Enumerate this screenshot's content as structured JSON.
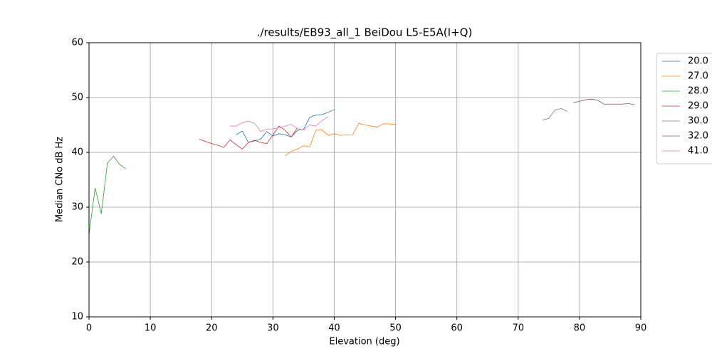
{
  "chart_data": {
    "type": "line",
    "title": "./results/EB93_all_1 BeiDou L5-E5A(I+Q)",
    "xlabel": "Elevation (deg)",
    "ylabel": "Median CNo dB Hz",
    "xlim": [
      0,
      90
    ],
    "ylim": [
      10,
      60
    ],
    "xticks": [
      0,
      10,
      20,
      30,
      40,
      50,
      60,
      70,
      80,
      90
    ],
    "yticks": [
      10,
      20,
      30,
      40,
      50,
      60
    ],
    "grid": true,
    "legend": "upper right",
    "series": [
      {
        "name": "20.0",
        "color": "#1f77b4",
        "x": [
          24,
          25,
          26,
          27,
          28,
          29,
          30,
          31,
          32,
          33,
          34,
          35,
          36,
          37,
          38,
          39,
          40
        ],
        "values": [
          43.2,
          43.9,
          41.8,
          42.1,
          42.4,
          43.8,
          43.0,
          43.4,
          43.2,
          42.8,
          44.0,
          44.2,
          46.4,
          46.8,
          46.9,
          47.3,
          47.8
        ]
      },
      {
        "name": "27.0",
        "color": "#ff7f0e",
        "x": [
          32,
          33,
          34,
          35,
          36,
          37,
          38,
          39,
          40,
          41,
          42,
          43,
          44,
          45,
          46,
          47,
          48,
          49,
          50
        ],
        "values": [
          39.4,
          40.2,
          40.6,
          41.2,
          41.0,
          44.0,
          44.1,
          43.1,
          43.4,
          43.1,
          43.2,
          43.2,
          45.3,
          45.0,
          44.8,
          44.6,
          45.2,
          45.2,
          45.1
        ]
      },
      {
        "name": "28.0",
        "color": "#2ca02c",
        "x": [
          0,
          1,
          2,
          3,
          4,
          5,
          6
        ],
        "values": [
          25.0,
          33.5,
          28.8,
          38.0,
          39.3,
          37.8,
          37.0
        ]
      },
      {
        "name": "29.0",
        "color": "#d62728",
        "x": [
          18,
          19,
          20,
          21,
          22,
          23,
          24,
          25,
          26,
          27,
          28,
          29,
          30,
          31,
          32,
          33,
          34
        ],
        "values": [
          42.4,
          42.0,
          41.6,
          41.3,
          40.9,
          42.3,
          41.4,
          40.6,
          41.8,
          42.2,
          41.8,
          41.6,
          43.2,
          44.8,
          44.0,
          42.8,
          44.5
        ]
      },
      {
        "name": "30.0",
        "color": "#9467bd",
        "x": [
          74,
          75,
          76,
          77,
          78
        ],
        "values": [
          45.9,
          46.2,
          47.7,
          48.0,
          47.5
        ]
      },
      {
        "name": "32.0",
        "color": "#8c564b",
        "x": [
          79,
          80,
          81,
          82,
          83,
          84,
          85,
          86,
          87,
          88,
          89
        ],
        "values": [
          49.1,
          49.3,
          49.6,
          49.7,
          49.5,
          48.8,
          48.8,
          48.8,
          48.8,
          48.9,
          48.7
        ]
      },
      {
        "name": "41.0",
        "color": "#e377c2",
        "x": [
          23,
          24,
          25,
          26,
          27,
          28,
          29,
          30,
          31,
          32,
          33,
          34,
          35,
          36,
          37,
          38,
          39
        ],
        "values": [
          44.8,
          44.8,
          45.4,
          45.7,
          45.3,
          43.8,
          44.2,
          44.3,
          44.5,
          44.8,
          45.1,
          44.3,
          44.1,
          45.0,
          44.8,
          45.8,
          46.5
        ]
      }
    ]
  }
}
